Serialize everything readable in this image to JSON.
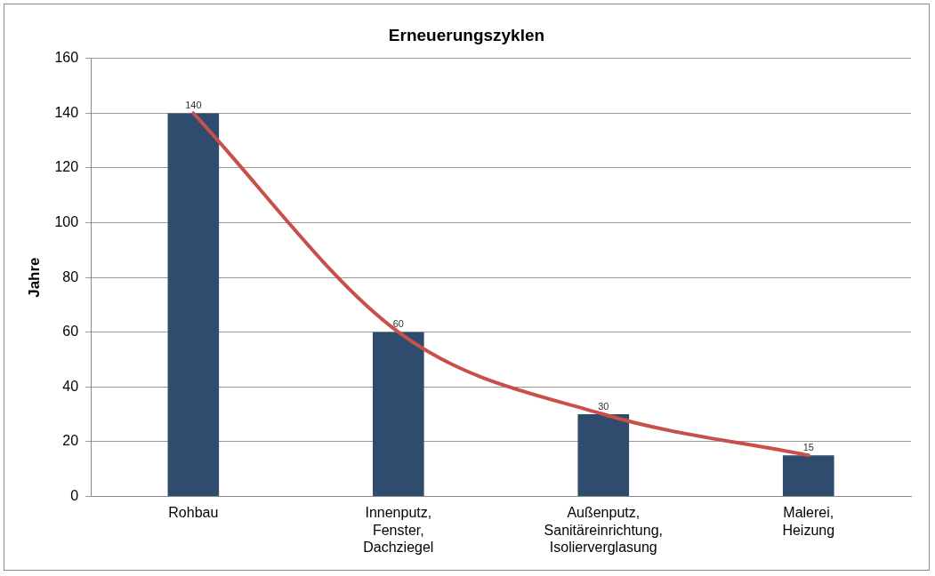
{
  "chart_data": {
    "type": "bar",
    "title": "Erneuerungszyklen",
    "ylabel": "Jahre",
    "categories": [
      "Rohbau",
      "Innenputz, Fenster, Dachziegel",
      "Außenputz, Sanitäreinrichtung, Isolierverglasung",
      "Malerei, Heizung"
    ],
    "series": [
      {
        "color": "#2f4b6e",
        "values": [
          140,
          60,
          30,
          15
        ],
        "value_labels": [
          "140",
          "60",
          "30",
          "15"
        ]
      },
      {
        "type": "line",
        "color": "#c9504a",
        "values": [
          140,
          60,
          30,
          15
        ]
      }
    ],
    "ylim": [
      0,
      160
    ],
    "yticks": [
      0,
      20,
      40,
      60,
      80,
      100,
      120,
      140,
      160
    ],
    "grid": "y",
    "legend": false,
    "marker": "none",
    "line_style": "solid"
  }
}
